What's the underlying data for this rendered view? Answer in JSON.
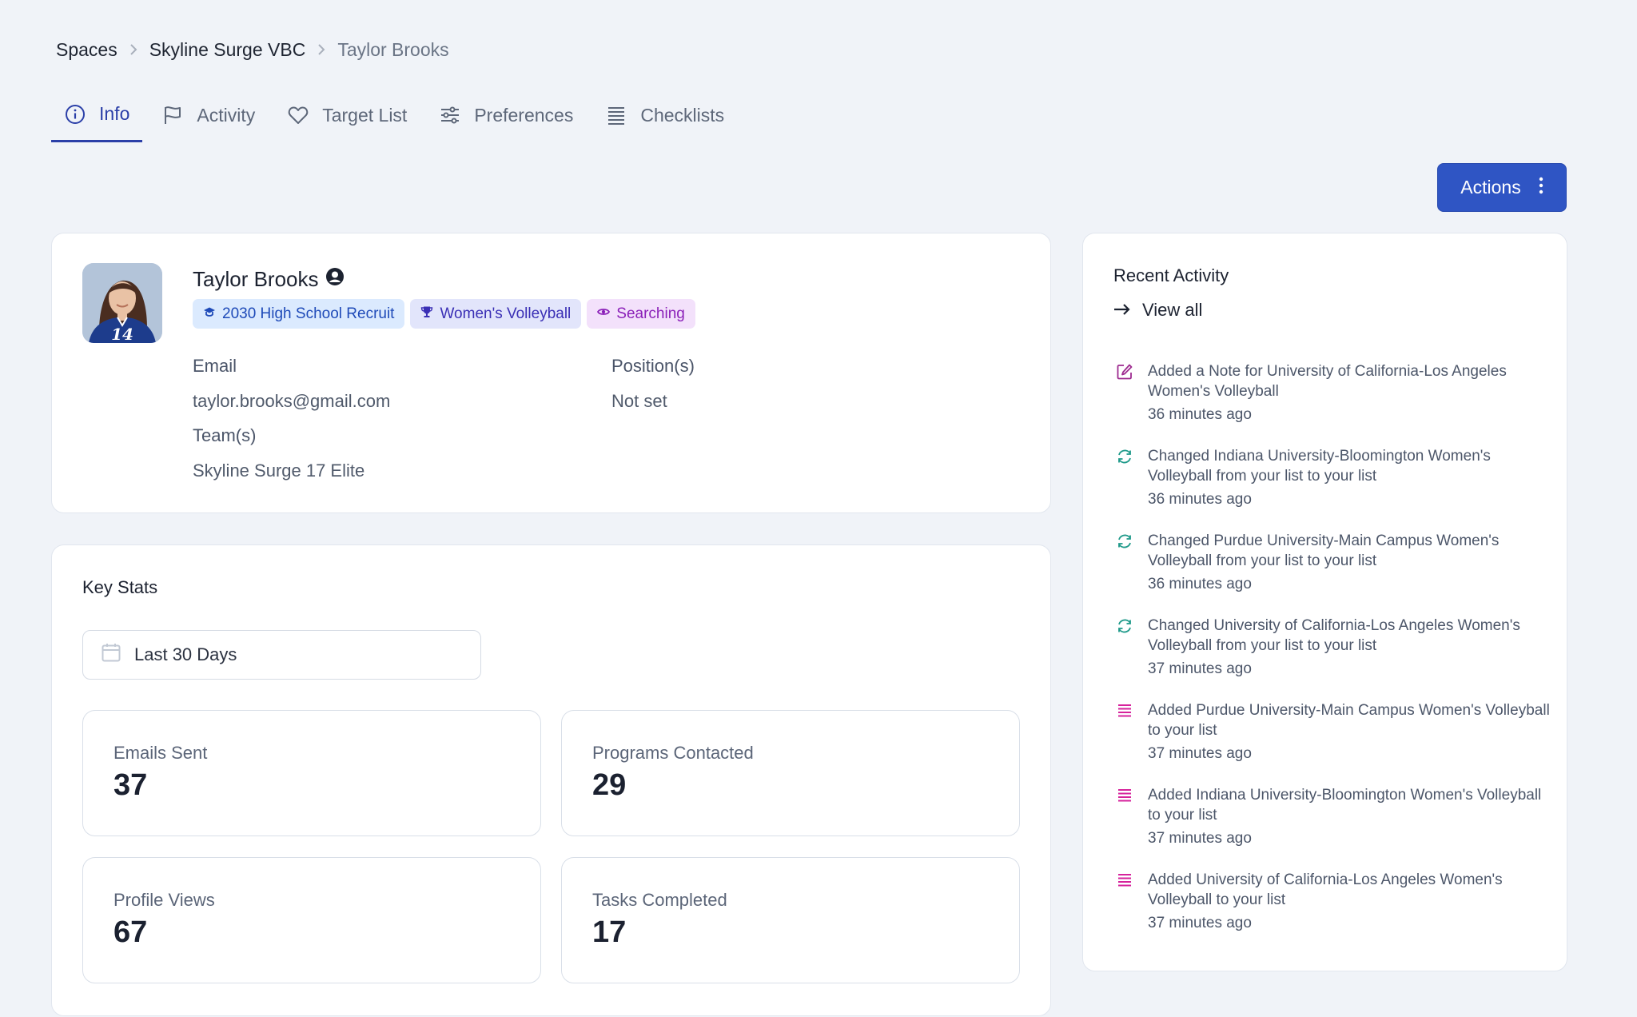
{
  "breadcrumb": {
    "items": [
      "Spaces",
      "Skyline Surge VBC",
      "Taylor Brooks"
    ]
  },
  "tabs": [
    {
      "label": "Info",
      "icon": "info-icon",
      "active": true
    },
    {
      "label": "Activity",
      "icon": "flag-icon",
      "active": false
    },
    {
      "label": "Target List",
      "icon": "heart-icon",
      "active": false
    },
    {
      "label": "Preferences",
      "icon": "sliders-icon",
      "active": false
    },
    {
      "label": "Checklists",
      "icon": "list-icon",
      "active": false
    }
  ],
  "actions": {
    "label": "Actions",
    "icon": "kebab-icon"
  },
  "profile": {
    "name": "Taylor Brooks",
    "badges": [
      {
        "label": "2030 High School Recruit",
        "icon": "graduation-cap-icon"
      },
      {
        "label": "Women's Volleyball",
        "icon": "trophy-icon"
      },
      {
        "label": "Searching",
        "icon": "eye-icon"
      }
    ],
    "email_label": "Email",
    "email": "taylor.brooks@gmail.com",
    "positions_label": "Position(s)",
    "positions": "Not set",
    "teams_label": "Team(s)",
    "teams": "Skyline Surge 17 Elite",
    "jersey_number": "14"
  },
  "key_stats": {
    "title": "Key Stats",
    "date_range": "Last 30 Days",
    "stats": [
      {
        "label": "Emails Sent",
        "value": "37"
      },
      {
        "label": "Programs Contacted",
        "value": "29"
      },
      {
        "label": "Profile Views",
        "value": "67"
      },
      {
        "label": "Tasks Completed",
        "value": "17"
      }
    ]
  },
  "recent_activity": {
    "title": "Recent Activity",
    "view_all": "View all",
    "items": [
      {
        "icon": "edit-icon",
        "color": "#9d2a8f",
        "text": "Added a Note for University of California-Los Angeles Women's Volleyball",
        "time": "36 minutes ago"
      },
      {
        "icon": "refresh-icon",
        "color": "#1f9a8a",
        "text": "Changed Indiana University-Bloomington Women's Volleyball from your list to your list",
        "time": "36 minutes ago"
      },
      {
        "icon": "refresh-icon",
        "color": "#1f9a8a",
        "text": "Changed Purdue University-Main Campus Women's Volleyball from your list to your list",
        "time": "36 minutes ago"
      },
      {
        "icon": "refresh-icon",
        "color": "#1f9a8a",
        "text": "Changed University of California-Los Angeles Women's Volleyball from your list to your list",
        "time": "37 minutes ago"
      },
      {
        "icon": "list-add-icon",
        "color": "#d6239c",
        "text": "Added Purdue University-Main Campus Women's Volleyball to your list",
        "time": "37 minutes ago"
      },
      {
        "icon": "list-add-icon",
        "color": "#d6239c",
        "text": "Added Indiana University-Bloomington Women's Volleyball to your list",
        "time": "37 minutes ago"
      },
      {
        "icon": "list-add-icon",
        "color": "#d6239c",
        "text": "Added University of California-Los Angeles Women's Volleyball to your list",
        "time": "37 minutes ago"
      }
    ]
  }
}
